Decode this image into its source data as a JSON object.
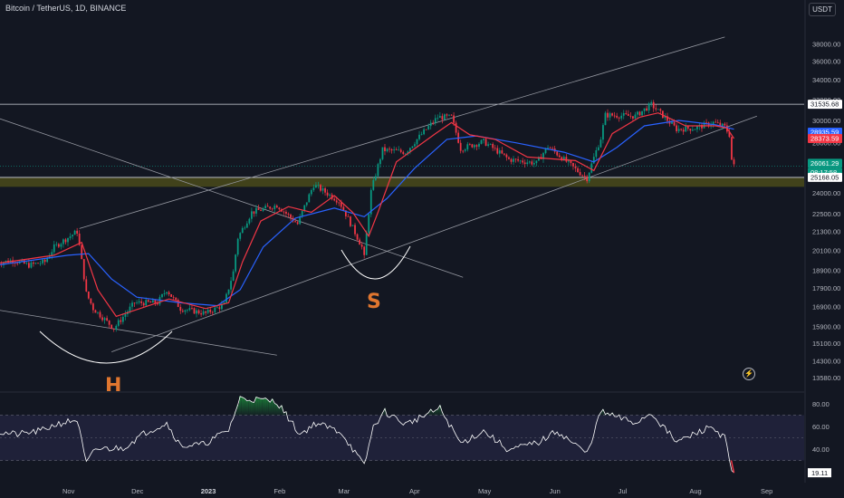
{
  "header": {
    "symbol_title": "Bitcoin / TetherUS, 1D, BINANCE",
    "currency_label": "USDT"
  },
  "alert_icon": "lightning-alert-icon",
  "colors": {
    "background": "#131722",
    "up": "#089981",
    "down": "#f23645",
    "ema_fast": "#f23645",
    "ema_slow": "#2962ff",
    "trendline": "#9598a1",
    "support_zone": "#4a4a1a",
    "annotation": "#e0762f",
    "rsi_line": "#ffffff",
    "rsi_band": "#2a2a4d"
  },
  "chart_data": [
    {
      "type": "candlestick",
      "ylim": [
        13000,
        39500
      ],
      "y_scale": "log",
      "y_ticks": [
        38000,
        36000,
        34000,
        32000,
        30000,
        28000,
        26000,
        24000,
        22500,
        21300,
        20100,
        18900,
        17900,
        16900,
        15900,
        15100,
        14300,
        13580
      ],
      "y_tick_labels": [
        "38000.00",
        "36000.00",
        "34000.00",
        "32000.00",
        "30000.00",
        "28000.00",
        "26000.00",
        "24000.00",
        "22500.00",
        "21300.00",
        "20100.00",
        "18900.00",
        "17900.00",
        "16900.00",
        "15900.00",
        "15100.00",
        "14300.00",
        "13580.00"
      ],
      "x_ticks": [
        {
          "date": "2022-11-01",
          "label": "Nov"
        },
        {
          "date": "2022-12-01",
          "label": "Dec"
        },
        {
          "date": "2023-01-01",
          "label": "2023"
        },
        {
          "date": "2023-02-01",
          "label": "Feb"
        },
        {
          "date": "2023-03-01",
          "label": "Mar"
        },
        {
          "date": "2023-04-01",
          "label": "Apr"
        },
        {
          "date": "2023-05-01",
          "label": "May"
        },
        {
          "date": "2023-06-01",
          "label": "Jun"
        },
        {
          "date": "2023-07-01",
          "label": "Jul"
        },
        {
          "date": "2023-08-01",
          "label": "Aug"
        },
        {
          "date": "2023-09-01",
          "label": "Sep"
        }
      ],
      "close_path": [
        [
          "2022-10-01",
          19300
        ],
        [
          "2022-10-08",
          19500
        ],
        [
          "2022-10-15",
          19200
        ],
        [
          "2022-10-22",
          19400
        ],
        [
          "2022-10-26",
          20300
        ],
        [
          "2022-11-05",
          21300
        ],
        [
          "2022-11-09",
          17600
        ],
        [
          "2022-11-12",
          16800
        ],
        [
          "2022-11-21",
          15800
        ],
        [
          "2022-11-30",
          17100
        ],
        [
          "2022-12-10",
          17100
        ],
        [
          "2022-12-14",
          17800
        ],
        [
          "2022-12-20",
          16800
        ],
        [
          "2022-12-31",
          16550
        ],
        [
          "2023-01-08",
          17000
        ],
        [
          "2023-01-12",
          18800
        ],
        [
          "2023-01-14",
          20900
        ],
        [
          "2023-01-20",
          22600
        ],
        [
          "2023-01-31",
          23100
        ],
        [
          "2023-02-09",
          21800
        ],
        [
          "2023-02-16",
          24600
        ],
        [
          "2023-02-27",
          23400
        ],
        [
          "2023-03-09",
          20300
        ],
        [
          "2023-03-10",
          19650
        ],
        [
          "2023-03-13",
          24100
        ],
        [
          "2023-03-18",
          27400
        ],
        [
          "2023-03-28",
          27200
        ],
        [
          "2023-04-11",
          30300
        ],
        [
          "2023-04-17",
          30300
        ],
        [
          "2023-04-21",
          27500
        ],
        [
          "2023-05-01",
          28100
        ],
        [
          "2023-05-12",
          26600
        ],
        [
          "2023-05-24",
          26300
        ],
        [
          "2023-05-29",
          27700
        ],
        [
          "2023-06-10",
          25800
        ],
        [
          "2023-06-15",
          25100
        ],
        [
          "2023-06-21",
          28400
        ],
        [
          "2023-06-23",
          30500
        ],
        [
          "2023-07-06",
          30400
        ],
        [
          "2023-07-13",
          31500
        ],
        [
          "2023-07-24",
          29200
        ],
        [
          "2023-08-01",
          29300
        ],
        [
          "2023-08-09",
          29800
        ],
        [
          "2023-08-14",
          29400
        ],
        [
          "2023-08-16",
          28700
        ],
        [
          "2023-08-17",
          26600
        ],
        [
          "2023-08-18",
          26060
        ]
      ],
      "ema_fast": [
        [
          "2022-10-01",
          19300
        ],
        [
          "2022-10-26",
          19800
        ],
        [
          "2022-11-07",
          20600
        ],
        [
          "2022-11-14",
          17800
        ],
        [
          "2022-11-22",
          16400
        ],
        [
          "2022-12-05",
          16900
        ],
        [
          "2022-12-15",
          17300
        ],
        [
          "2022-12-31",
          16800
        ],
        [
          "2023-01-10",
          17100
        ],
        [
          "2023-01-16",
          19400
        ],
        [
          "2023-01-24",
          22000
        ],
        [
          "2023-02-05",
          23000
        ],
        [
          "2023-02-15",
          22600
        ],
        [
          "2023-02-25",
          23800
        ],
        [
          "2023-03-05",
          22600
        ],
        [
          "2023-03-12",
          21000
        ],
        [
          "2023-03-16",
          22600
        ],
        [
          "2023-03-24",
          26400
        ],
        [
          "2023-04-10",
          28800
        ],
        [
          "2023-04-17",
          29800
        ],
        [
          "2023-04-25",
          28700
        ],
        [
          "2023-05-06",
          28300
        ],
        [
          "2023-05-20",
          26800
        ],
        [
          "2023-06-10",
          26500
        ],
        [
          "2023-06-18",
          25700
        ],
        [
          "2023-06-26",
          28800
        ],
        [
          "2023-07-08",
          30300
        ],
        [
          "2023-07-16",
          30700
        ],
        [
          "2023-07-28",
          29500
        ],
        [
          "2023-08-10",
          29500
        ],
        [
          "2023-08-15",
          29300
        ],
        [
          "2023-08-18",
          28373.59
        ]
      ],
      "ema_slow": [
        [
          "2022-10-01",
          19200
        ],
        [
          "2022-11-01",
          19800
        ],
        [
          "2022-11-10",
          19900
        ],
        [
          "2022-11-20",
          18400
        ],
        [
          "2022-12-01",
          17400
        ],
        [
          "2022-12-20",
          17100
        ],
        [
          "2023-01-05",
          16950
        ],
        [
          "2023-01-15",
          17800
        ],
        [
          "2023-01-25",
          20300
        ],
        [
          "2023-02-08",
          22200
        ],
        [
          "2023-02-25",
          22900
        ],
        [
          "2023-03-10",
          22300
        ],
        [
          "2023-03-20",
          23600
        ],
        [
          "2023-04-01",
          25900
        ],
        [
          "2023-04-15",
          28300
        ],
        [
          "2023-04-28",
          28600
        ],
        [
          "2023-05-15",
          28000
        ],
        [
          "2023-06-05",
          27200
        ],
        [
          "2023-06-18",
          26400
        ],
        [
          "2023-06-28",
          27600
        ],
        [
          "2023-07-10",
          29500
        ],
        [
          "2023-07-25",
          30000
        ],
        [
          "2023-08-10",
          29600
        ],
        [
          "2023-08-18",
          29200
        ]
      ],
      "price_labels": [
        {
          "value": "31535.68",
          "price": 31535.68,
          "style": "white"
        },
        {
          "value": "28935.59",
          "price": 28935.59,
          "style": "blue"
        },
        {
          "value": "28373.59",
          "price": 28373.59,
          "style": "red"
        },
        {
          "value": "26061.29",
          "price": 26061.29,
          "style": "green"
        },
        {
          "value": "08:17:58",
          "price": 26061.29,
          "style": "green-sub"
        },
        {
          "value": "25168.05",
          "price": 25168.05,
          "style": "white"
        }
      ],
      "horizontal_levels": [
        31535.68,
        25168.05
      ],
      "support_zone": [
        24450,
        25150
      ],
      "trendlines": [
        {
          "from": [
            "2022-11-06",
            21500
          ],
          "to": [
            "2023-08-14",
            38800
          ]
        },
        {
          "from": [
            "2022-11-20",
            14700
          ],
          "to": [
            "2023-08-28",
            30400
          ]
        },
        {
          "from": [
            "2022-09-25",
            30700
          ],
          "to": [
            "2023-04-22",
            18500
          ]
        },
        {
          "from": [
            "2022-09-25",
            16850
          ],
          "to": [
            "2023-01-31",
            14550
          ]
        }
      ],
      "annotations": [
        "H",
        "S"
      ]
    },
    {
      "type": "line",
      "name": "RSI",
      "ylim": [
        0,
        100
      ],
      "y_tick_labels": [
        "80.00",
        "60.00",
        "40.00"
      ],
      "band": [
        30,
        70
      ],
      "current_label": "19.11",
      "points": [
        [
          "2022-10-01",
          55
        ],
        [
          "2022-10-10",
          53
        ],
        [
          "2022-10-20",
          56
        ],
        [
          "2022-10-27",
          62
        ],
        [
          "2022-11-05",
          66
        ],
        [
          "2022-11-09",
          27
        ],
        [
          "2022-11-13",
          40
        ],
        [
          "2022-11-25",
          41
        ],
        [
          "2022-12-05",
          55
        ],
        [
          "2022-12-14",
          63
        ],
        [
          "2022-12-20",
          43
        ],
        [
          "2022-12-30",
          44
        ],
        [
          "2023-01-10",
          57
        ],
        [
          "2023-01-15",
          85
        ],
        [
          "2023-01-21",
          84
        ],
        [
          "2023-01-31",
          82
        ],
        [
          "2023-02-10",
          53
        ],
        [
          "2023-02-17",
          63
        ],
        [
          "2023-02-28",
          55
        ],
        [
          "2023-03-10",
          25
        ],
        [
          "2023-03-14",
          60
        ],
        [
          "2023-03-19",
          73
        ],
        [
          "2023-03-28",
          62
        ],
        [
          "2023-04-12",
          76
        ],
        [
          "2023-04-21",
          45
        ],
        [
          "2023-05-01",
          56
        ],
        [
          "2023-05-12",
          39
        ],
        [
          "2023-05-25",
          46
        ],
        [
          "2023-06-02",
          56
        ],
        [
          "2023-06-15",
          36
        ],
        [
          "2023-06-21",
          73
        ],
        [
          "2023-06-27",
          69
        ],
        [
          "2023-07-06",
          63
        ],
        [
          "2023-07-13",
          72
        ],
        [
          "2023-07-24",
          46
        ],
        [
          "2023-08-08",
          60
        ],
        [
          "2023-08-14",
          50
        ],
        [
          "2023-08-17",
          21
        ],
        [
          "2023-08-18",
          19.11
        ]
      ]
    }
  ]
}
